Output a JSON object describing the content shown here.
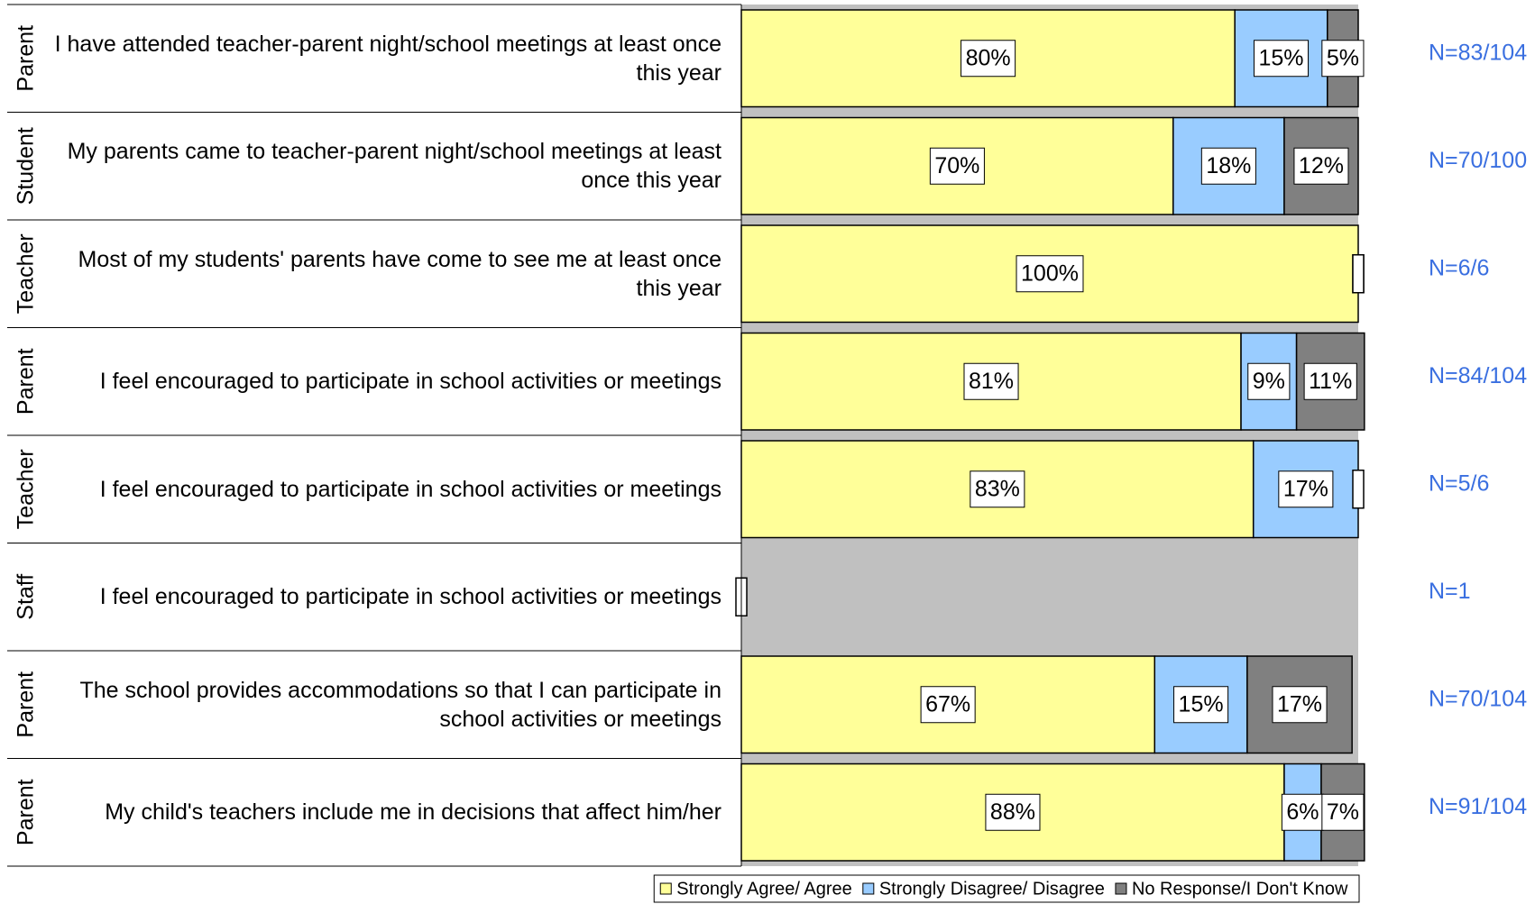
{
  "chart_data": {
    "type": "stacked_bar_horizontal",
    "groups": [
      "Parent",
      "Student",
      "Teacher",
      "Parent",
      "Teacher",
      "Staff",
      "Parent",
      "Parent"
    ],
    "categories": [
      "I have attended teacher-parent night/school meetings at least once this year",
      "My parents came to teacher-parent night/school meetings at least once this year",
      "Most of my students' parents have come to see me at least once this year",
      "I feel encouraged to participate in school activities or meetings",
      "I feel encouraged to participate in school activities or meetings",
      "I feel encouraged to participate in school activities or meetings",
      "The school provides accommodations so that I can participate in school activities or meetings",
      "My child's teachers include me in decisions that affect him/her"
    ],
    "series": [
      {
        "name": "Strongly Agree/ Agree",
        "color": "#ffff99",
        "values": [
          80,
          70,
          100,
          81,
          83,
          null,
          67,
          88
        ],
        "value_labels": [
          "80%",
          "70%",
          "100%",
          "81%",
          "83%",
          null,
          "67%",
          "88%"
        ]
      },
      {
        "name": "Strongly Disagree/ Disagree",
        "color": "#99ccff",
        "values": [
          15,
          18,
          0,
          9,
          17,
          null,
          15,
          6
        ],
        "value_labels": [
          "15%",
          "18%",
          null,
          "9%",
          "17%",
          null,
          "15%",
          "6%"
        ]
      },
      {
        "name": "No Response/I Don't Know",
        "color": "#808080",
        "values": [
          5,
          12,
          0,
          11,
          0,
          null,
          17,
          7
        ],
        "value_labels": [
          "5%",
          "12%",
          null,
          "11%",
          null,
          null,
          "17%",
          "7%"
        ]
      }
    ],
    "n_labels": [
      "N=83/104",
      "N=70/100",
      "N=6/6",
      "N=84/104",
      "N=5/6",
      "N=1",
      "N=70/104",
      "N=91/104"
    ],
    "xlim": [
      0,
      100
    ],
    "background_color": "#c0c0c0"
  }
}
